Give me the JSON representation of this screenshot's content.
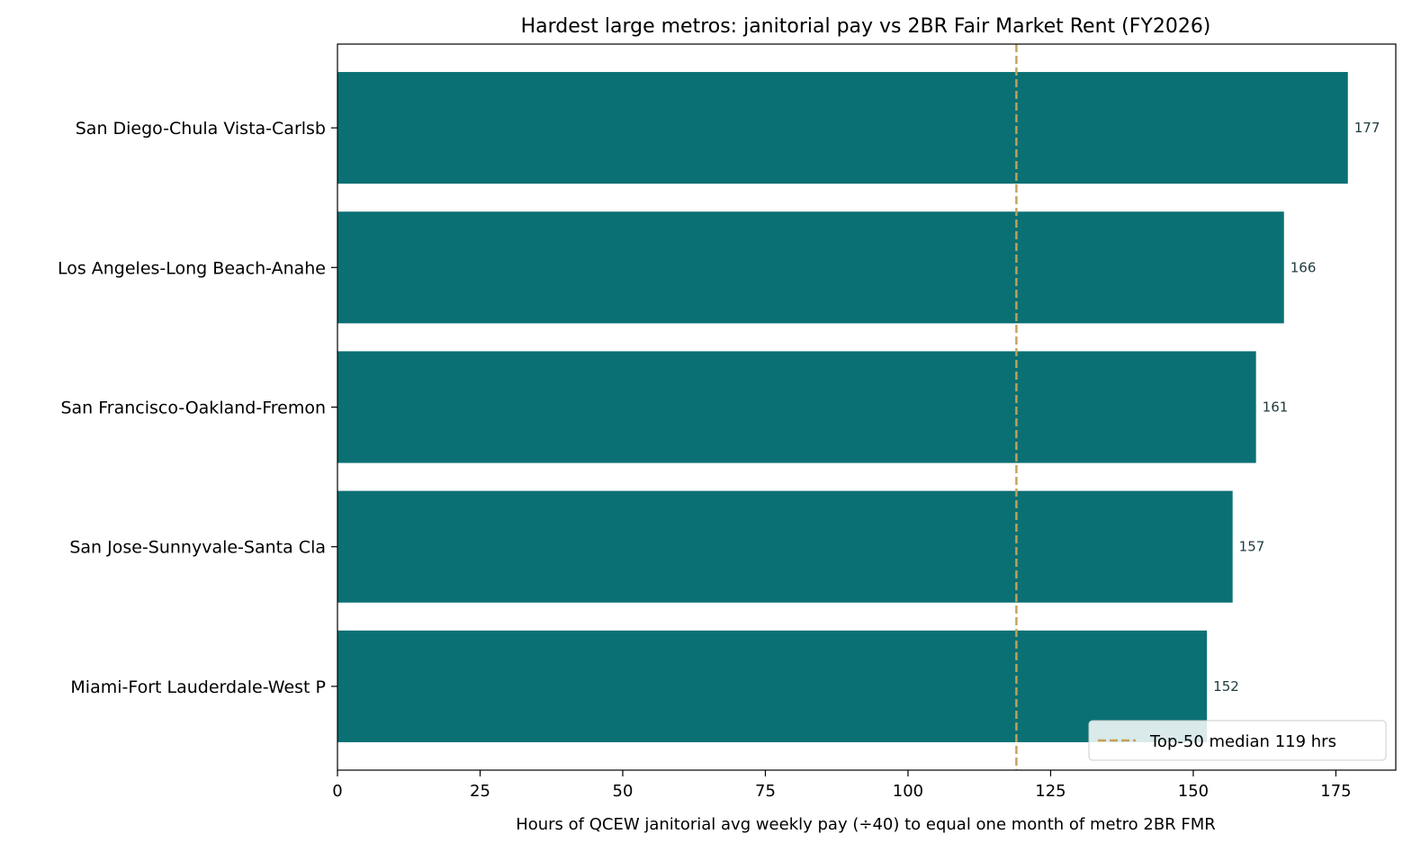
{
  "chart_data": {
    "type": "bar",
    "orientation": "horizontal",
    "title": "Hardest large metros: janitorial pay vs 2BR Fair Market Rent (FY2026)",
    "xlabel": "Hours of QCEW janitorial avg weekly pay (÷40) to equal one month of metro 2BR FMR",
    "ylabel": "",
    "xlim": [
      0,
      185.5
    ],
    "xticks": [
      0,
      25,
      50,
      75,
      100,
      125,
      150,
      175
    ],
    "categories": [
      "San Diego-Chula Vista-Carlsb",
      "Los Angeles-Long Beach-Anahe",
      "San Francisco-Oakland-Fremon",
      "San Jose-Sunnyvale-Santa Cla",
      "Miami-Fort Lauderdale-West P"
    ],
    "values": [
      177.1,
      165.9,
      161.0,
      156.9,
      152.4
    ],
    "data_labels": [
      "177",
      "166",
      "161",
      "157",
      "152"
    ],
    "reference_line": {
      "value": 119,
      "label": "Top-50 median 119 hrs",
      "style": "dashed"
    },
    "legend": {
      "placement": "lower-right",
      "entries": [
        "Top-50 median 119 hrs"
      ]
    },
    "grid": false,
    "colors": {
      "bar": "#0b7073",
      "reference_line": "#c4a05a",
      "data_label": "#1f3a3d",
      "axis": "#000000"
    }
  }
}
